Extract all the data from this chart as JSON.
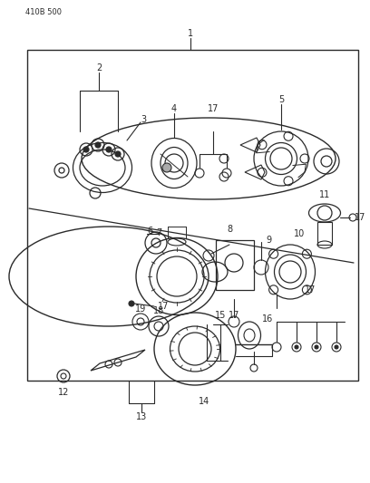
{
  "header_text": "410B 500",
  "bg_color": "#ffffff",
  "line_color": "#2a2a2a",
  "fig_width": 4.08,
  "fig_height": 5.33,
  "dpi": 100
}
